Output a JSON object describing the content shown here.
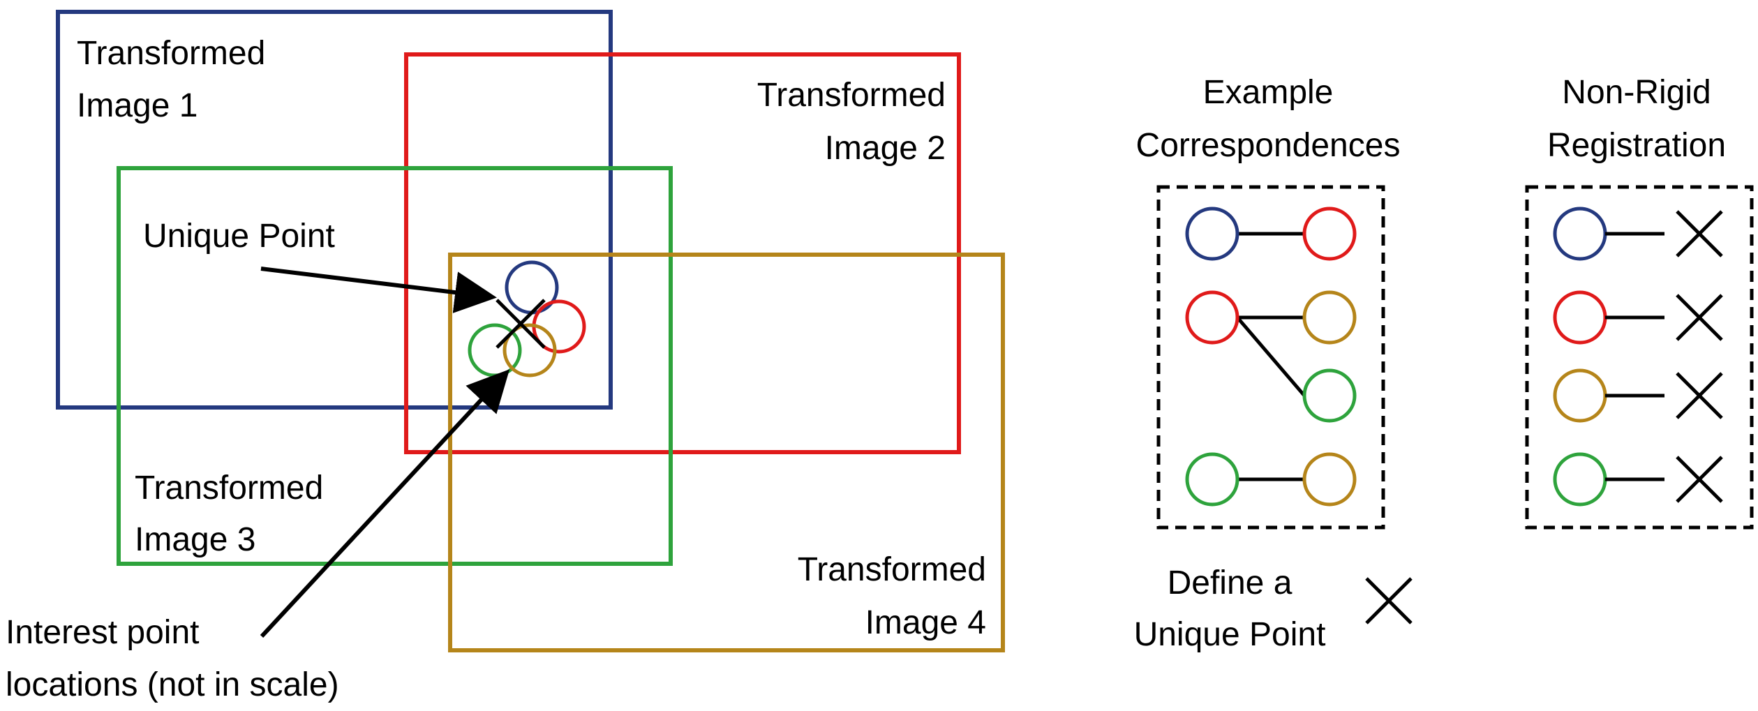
{
  "colors": {
    "blue": "#24397f",
    "red": "#e01a1a",
    "green": "#2ea33c",
    "gold": "#b5851a",
    "black": "#000000"
  },
  "images": [
    {
      "title": "Transformed",
      "subtitle": "Image 1",
      "color": "blue"
    },
    {
      "title": "Transformed",
      "subtitle": "Image 2",
      "color": "red"
    },
    {
      "title": "Transformed",
      "subtitle": "Image 3",
      "color": "green"
    },
    {
      "title": "Transformed",
      "subtitle": "Image 4",
      "color": "gold"
    }
  ],
  "annotations": {
    "unique_point": "Unique Point",
    "interest_line1": "Interest point",
    "interest_line2": "locations (not in scale)"
  },
  "example_panel": {
    "title_line1": "Example",
    "title_line2": "Correspondences",
    "rows": [
      {
        "left": "blue",
        "right": [
          "red"
        ]
      },
      {
        "left": "red",
        "right": [
          "gold",
          "green"
        ]
      },
      {
        "left": "green",
        "right": [
          "gold"
        ]
      }
    ]
  },
  "nonrigid_panel": {
    "title_line1": "Non-Rigid",
    "title_line2": "Registration",
    "rows": [
      "blue",
      "red",
      "gold",
      "green"
    ]
  },
  "legend": {
    "line1": "Define a",
    "line2": "Unique Point",
    "icon": "x-mark-icon"
  }
}
